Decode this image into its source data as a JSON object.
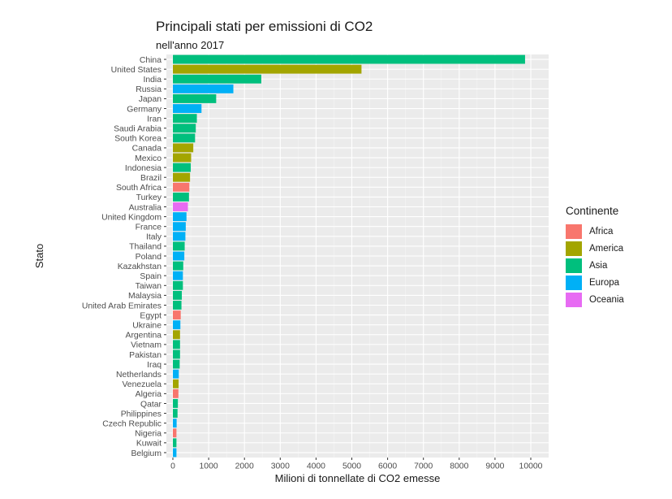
{
  "chart_data": {
    "type": "bar",
    "orientation": "horizontal",
    "title": "Principali stati per emissioni di CO2",
    "subtitle": "nell'anno 2017",
    "xlabel": "Milioni di tonnellate di CO2 emesse",
    "ylabel": "Stato",
    "xlim": [
      0,
      10000
    ],
    "xticks": [
      0,
      1000,
      2000,
      3000,
      4000,
      5000,
      6000,
      7000,
      8000,
      9000,
      10000
    ],
    "grid": true,
    "legend_position": "right",
    "legend_title": "Continente",
    "legend": [
      {
        "name": "Africa",
        "color": "#F8766D"
      },
      {
        "name": "America",
        "color": "#A3A500"
      },
      {
        "name": "Asia",
        "color": "#00BF7D"
      },
      {
        "name": "Europa",
        "color": "#00B0F6"
      },
      {
        "name": "Oceania",
        "color": "#E76BF3"
      }
    ],
    "bars": [
      {
        "country": "China",
        "value": 9840,
        "continent": "Asia"
      },
      {
        "country": "United States",
        "value": 5270,
        "continent": "America"
      },
      {
        "country": "India",
        "value": 2470,
        "continent": "Asia"
      },
      {
        "country": "Russia",
        "value": 1690,
        "continent": "Europa"
      },
      {
        "country": "Japan",
        "value": 1210,
        "continent": "Asia"
      },
      {
        "country": "Germany",
        "value": 800,
        "continent": "Europa"
      },
      {
        "country": "Iran",
        "value": 670,
        "continent": "Asia"
      },
      {
        "country": "Saudi Arabia",
        "value": 640,
        "continent": "Asia"
      },
      {
        "country": "South Korea",
        "value": 620,
        "continent": "Asia"
      },
      {
        "country": "Canada",
        "value": 570,
        "continent": "America"
      },
      {
        "country": "Mexico",
        "value": 510,
        "continent": "America"
      },
      {
        "country": "Indonesia",
        "value": 500,
        "continent": "Asia"
      },
      {
        "country": "Brazil",
        "value": 480,
        "continent": "America"
      },
      {
        "country": "South Africa",
        "value": 460,
        "continent": "Africa"
      },
      {
        "country": "Turkey",
        "value": 450,
        "continent": "Asia"
      },
      {
        "country": "Australia",
        "value": 420,
        "continent": "Oceania"
      },
      {
        "country": "United Kingdom",
        "value": 380,
        "continent": "Europa"
      },
      {
        "country": "France",
        "value": 360,
        "continent": "Europa"
      },
      {
        "country": "Italy",
        "value": 350,
        "continent": "Europa"
      },
      {
        "country": "Thailand",
        "value": 330,
        "continent": "Asia"
      },
      {
        "country": "Poland",
        "value": 320,
        "continent": "Europa"
      },
      {
        "country": "Kazakhstan",
        "value": 290,
        "continent": "Asia"
      },
      {
        "country": "Spain",
        "value": 280,
        "continent": "Europa"
      },
      {
        "country": "Taiwan",
        "value": 280,
        "continent": "Asia"
      },
      {
        "country": "Malaysia",
        "value": 250,
        "continent": "Asia"
      },
      {
        "country": "United Arab Emirates",
        "value": 240,
        "continent": "Asia"
      },
      {
        "country": "Egypt",
        "value": 220,
        "continent": "Africa"
      },
      {
        "country": "Ukraine",
        "value": 210,
        "continent": "Europa"
      },
      {
        "country": "Argentina",
        "value": 200,
        "continent": "America"
      },
      {
        "country": "Vietnam",
        "value": 200,
        "continent": "Asia"
      },
      {
        "country": "Pakistan",
        "value": 200,
        "continent": "Asia"
      },
      {
        "country": "Iraq",
        "value": 190,
        "continent": "Asia"
      },
      {
        "country": "Netherlands",
        "value": 165,
        "continent": "Europa"
      },
      {
        "country": "Venezuela",
        "value": 160,
        "continent": "America"
      },
      {
        "country": "Algeria",
        "value": 155,
        "continent": "Africa"
      },
      {
        "country": "Qatar",
        "value": 140,
        "continent": "Asia"
      },
      {
        "country": "Philippines",
        "value": 130,
        "continent": "Asia"
      },
      {
        "country": "Czech Republic",
        "value": 105,
        "continent": "Europa"
      },
      {
        "country": "Nigeria",
        "value": 100,
        "continent": "Africa"
      },
      {
        "country": "Kuwait",
        "value": 100,
        "continent": "Asia"
      },
      {
        "country": "Belgium",
        "value": 100,
        "continent": "Europa"
      }
    ]
  }
}
